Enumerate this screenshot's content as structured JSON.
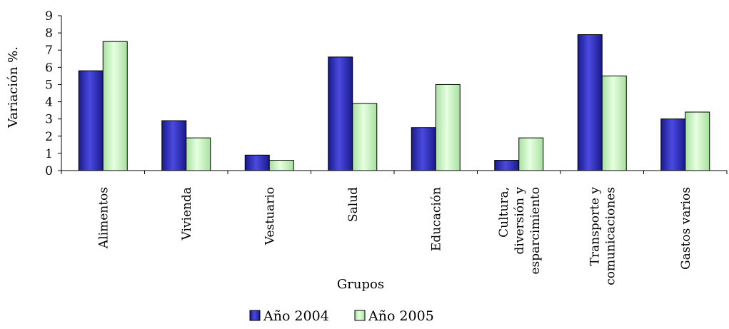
{
  "chart_data": {
    "type": "bar",
    "title": "",
    "xlabel": "Grupos",
    "ylabel": "Variación %.",
    "ylim": [
      0,
      9
    ],
    "yticks": [
      0,
      1,
      2,
      3,
      4,
      5,
      6,
      7,
      8,
      9
    ],
    "grid": false,
    "legend_position": "bottom",
    "categories": [
      [
        "Alimentos"
      ],
      [
        "Vivienda"
      ],
      [
        "Vestuario"
      ],
      [
        "Salud"
      ],
      [
        "Educación"
      ],
      [
        "Cultura,",
        "diversión y",
        "esparcimiento"
      ],
      [
        "Transporte y",
        "comunicaciones"
      ],
      [
        "Gastos varios"
      ]
    ],
    "series": [
      {
        "name": "Año 2004",
        "color": "#2E2EB8",
        "values": [
          5.8,
          2.9,
          0.9,
          6.6,
          2.5,
          0.6,
          7.9,
          3.0
        ]
      },
      {
        "name": "Año 2005",
        "color": "#C8F0C0",
        "values": [
          7.5,
          1.9,
          0.6,
          3.9,
          5.0,
          1.9,
          5.5,
          3.4
        ]
      }
    ]
  }
}
